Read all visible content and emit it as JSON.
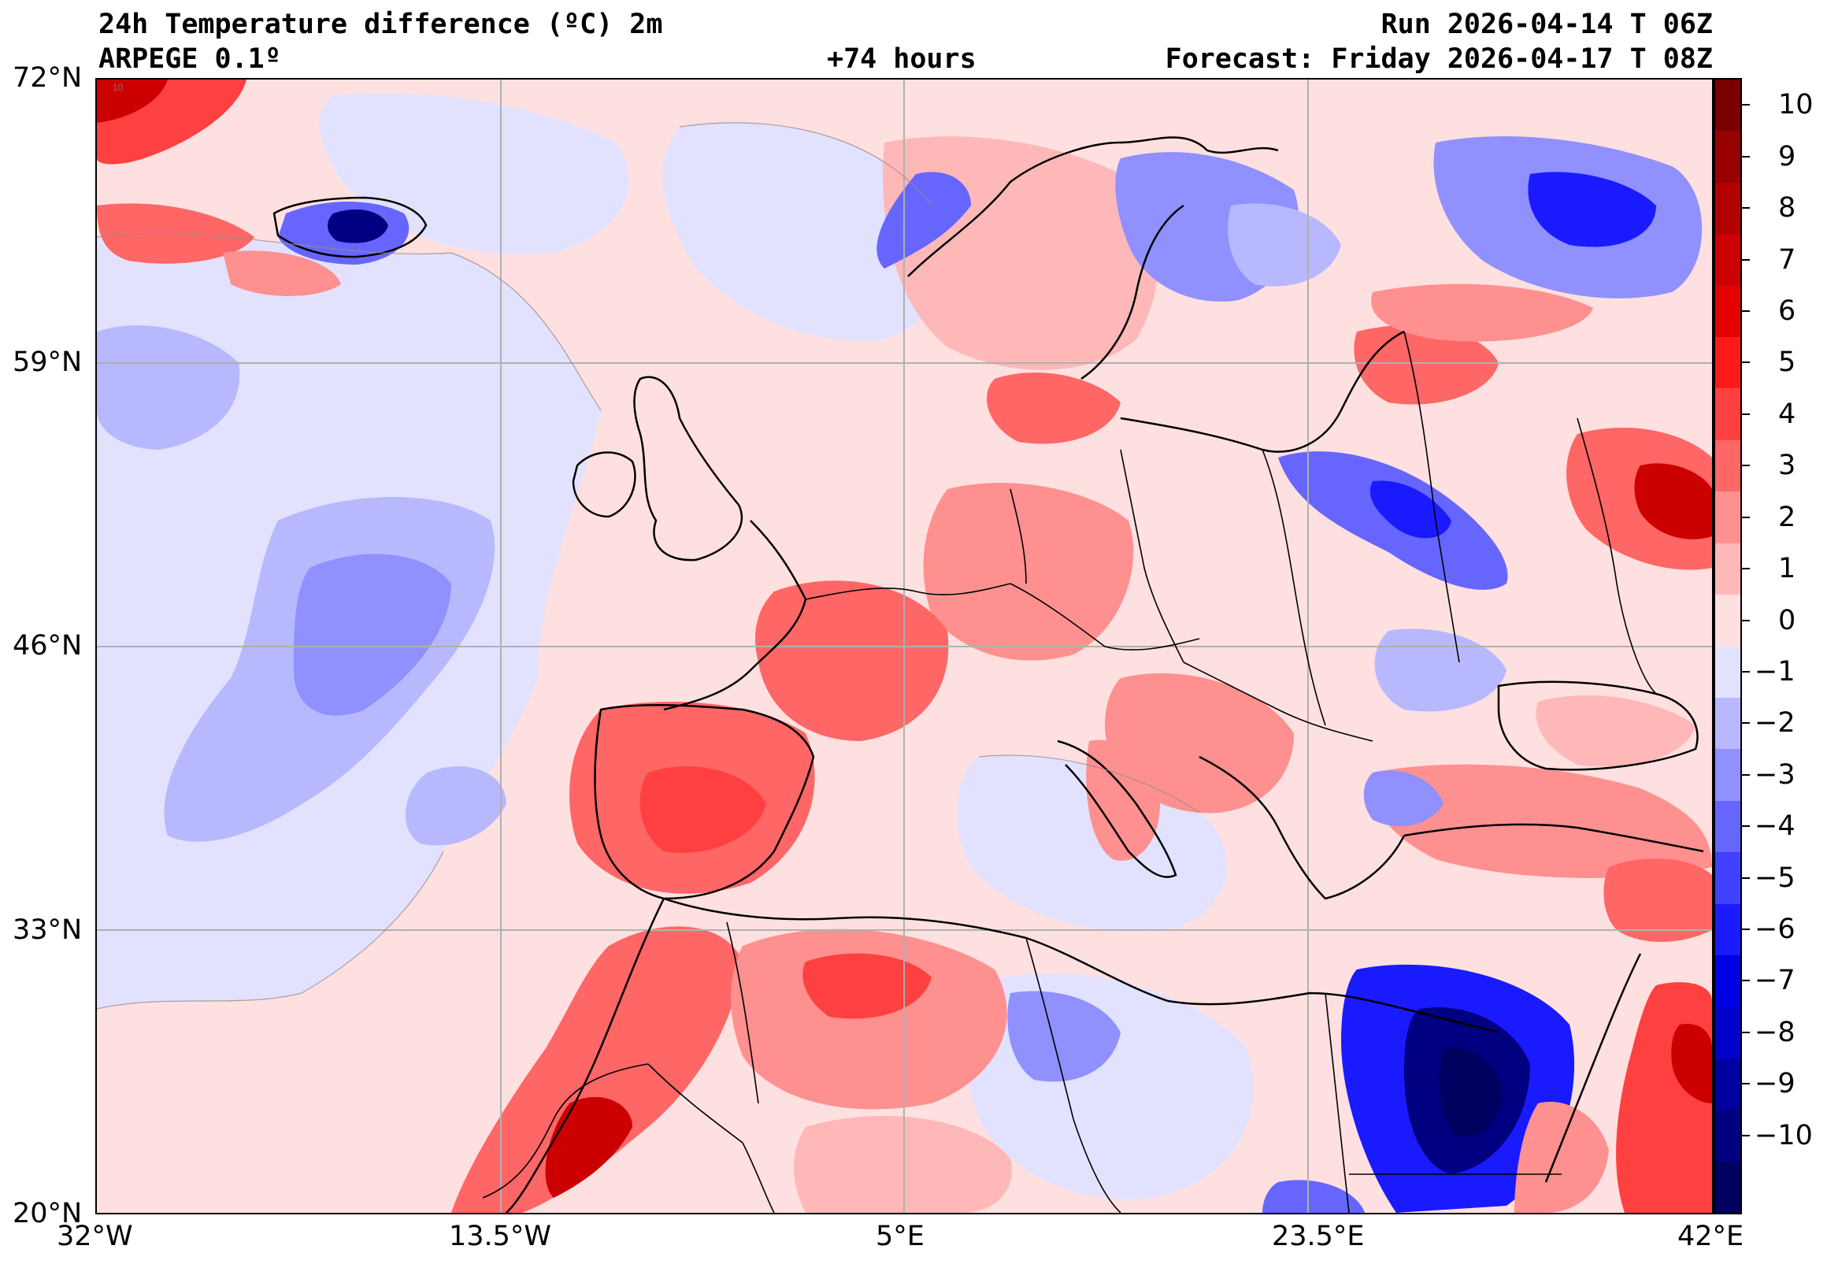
{
  "header": {
    "title": "24h Temperature difference (ºC) 2m",
    "model": "ARPEGE 0.1º",
    "lead_time": "+74 hours",
    "run": "Run 2026-04-14 T 06Z",
    "forecast": "Forecast: Friday 2026-04-17 T 08Z"
  },
  "axes": {
    "lat_labels": [
      "72°N",
      "59°N",
      "46°N",
      "33°N",
      "20°N"
    ],
    "lon_labels": [
      "32°W",
      "13.5°W",
      "5°E",
      "23.5°E",
      "42°E"
    ]
  },
  "colorbar": {
    "labels": [
      "10",
      "9",
      "8",
      "7",
      "6",
      "5",
      "4",
      "3",
      "2",
      "1",
      "0",
      "−1",
      "−2",
      "−3",
      "−4",
      "−5",
      "−6",
      "−7",
      "−8",
      "−9",
      "−10"
    ],
    "colors": [
      "#7a0000",
      "#990000",
      "#b30000",
      "#cc0000",
      "#e60000",
      "#ff1a1a",
      "#ff4040",
      "#ff6666",
      "#ff9090",
      "#ffb8b8",
      "#ffe0e0",
      "#e2e2ff",
      "#b8b8ff",
      "#9090ff",
      "#6666ff",
      "#4040ff",
      "#1a1aff",
      "#0000e6",
      "#0000cc",
      "#0000a0",
      "#000080",
      "#000060"
    ]
  },
  "map_colors": {
    "neutral_warm": "#ffe0e0",
    "neutral_cool": "#e2e2ff",
    "warm1": "#ffb8b8",
    "warm2": "#ff9090",
    "warm3": "#ff6666",
    "warm4": "#ff4040",
    "warm5": "#ff1a1a",
    "warm6": "#cc0000",
    "cool1": "#b8b8ff",
    "cool2": "#9090ff",
    "cool3": "#6666ff",
    "cool4": "#1a1aff",
    "cool5": "#0000cc",
    "cool6": "#000080",
    "grid": "#b0b0b0",
    "coast": "#000000"
  },
  "corner_mark": "10"
}
